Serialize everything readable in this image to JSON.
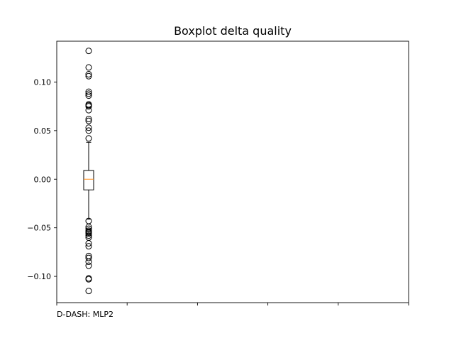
{
  "chart_data": {
    "type": "boxplot",
    "title": "Boxplot delta quality",
    "ylim": [
      -0.127,
      0.142
    ],
    "yticks": [
      -0.1,
      -0.05,
      0.0,
      0.05,
      0.1
    ],
    "ytick_labels": [
      "−0.10",
      "−0.05",
      "0.00",
      "0.05",
      "0.10"
    ],
    "xtick_labels": [
      "D-DASH: MLP2",
      "",
      "",
      "",
      "",
      ""
    ],
    "grid": false,
    "boxes": [
      {
        "label": "D-DASH: MLP2",
        "q1": -0.011,
        "median": 0.0,
        "q3": 0.009,
        "whisker_low": -0.041,
        "whisker_high": 0.038,
        "fliers": [
          0.132,
          0.115,
          0.108,
          0.106,
          0.09,
          0.088,
          0.086,
          0.077,
          0.076,
          0.075,
          0.071,
          0.062,
          0.06,
          0.053,
          0.05,
          0.042,
          -0.043,
          -0.049,
          -0.051,
          -0.053,
          -0.054,
          -0.055,
          -0.056,
          -0.058,
          -0.06,
          -0.066,
          -0.069,
          -0.079,
          -0.081,
          -0.085,
          -0.089,
          -0.102,
          -0.103,
          -0.115
        ]
      }
    ],
    "colors": {
      "median": "#ff8c1a",
      "box": "#000000",
      "flier": "#000000"
    }
  }
}
